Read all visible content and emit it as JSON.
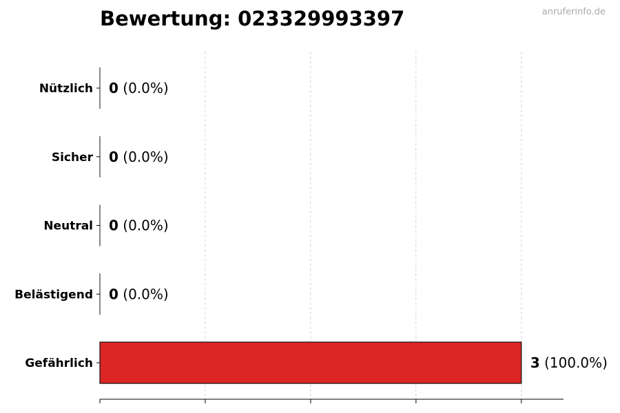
{
  "chart_data": {
    "type": "bar",
    "orientation": "horizontal",
    "title": "Bewertung: 023329993397",
    "categories": [
      "Nützlich",
      "Sicher",
      "Neutral",
      "Belästigend",
      "Gefährlich"
    ],
    "values": [
      0,
      0,
      0,
      0,
      3
    ],
    "value_labels": [
      "(0.0%)",
      "(0.0%)",
      "(0.0%)",
      "(0.0%)",
      "(100.0%)"
    ],
    "colors": [
      "#22c55e",
      "#3b82f6",
      "#9ca3af",
      "#f59e0b",
      "#dc2626"
    ],
    "xlim": [
      0,
      3.3
    ],
    "xticks": [
      0,
      0.75,
      1.5,
      2.25,
      3
    ],
    "xtick_labels_shown": false,
    "grid": "x-dashed",
    "xlabel": "",
    "ylabel": ""
  },
  "watermark": "anruferinfo.de"
}
